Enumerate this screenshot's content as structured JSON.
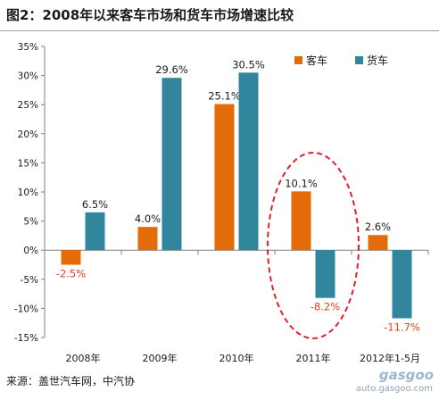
{
  "header": {
    "title": "图2：2008年以来客车市场和货车市场增速比较"
  },
  "footer": {
    "source": "来源：盖世汽车网，中汽协"
  },
  "watermark": {
    "logo_text": "gasgoo",
    "url": "auto.gasgoo.com"
  },
  "chart_data": {
    "type": "bar",
    "categories": [
      "2008年",
      "2009年",
      "2010年",
      "2011年",
      "2012年1-5月"
    ],
    "series": [
      {
        "name": "客车",
        "color": "#e36c09",
        "values": [
          -2.5,
          4.0,
          25.1,
          10.1,
          2.6
        ],
        "labels": [
          "-2.5%",
          "4.0%",
          "25.1%",
          "10.1%",
          "2.6%"
        ]
      },
      {
        "name": "货车",
        "color": "#31859c",
        "values": [
          6.5,
          29.6,
          30.5,
          -8.2,
          -11.7
        ],
        "labels": [
          "6.5%",
          "29.6%",
          "30.5%",
          "-8.2%",
          "-11.7%"
        ]
      }
    ],
    "ylim": [
      -15,
      35
    ],
    "yticks": [
      -15,
      -10,
      -5,
      0,
      5,
      10,
      15,
      20,
      25,
      30,
      35
    ],
    "ytick_labels": [
      "-15%",
      "-10%",
      "-5%",
      "0%",
      "5%",
      "10%",
      "15%",
      "20%",
      "25%",
      "30%",
      "35%"
    ],
    "negative_label_color": "#e0401c",
    "positive_label_color": "#1a1a1a",
    "legend_position": "top-right",
    "grid": false,
    "annotation": "red dashed ellipse highlighting 2011"
  }
}
